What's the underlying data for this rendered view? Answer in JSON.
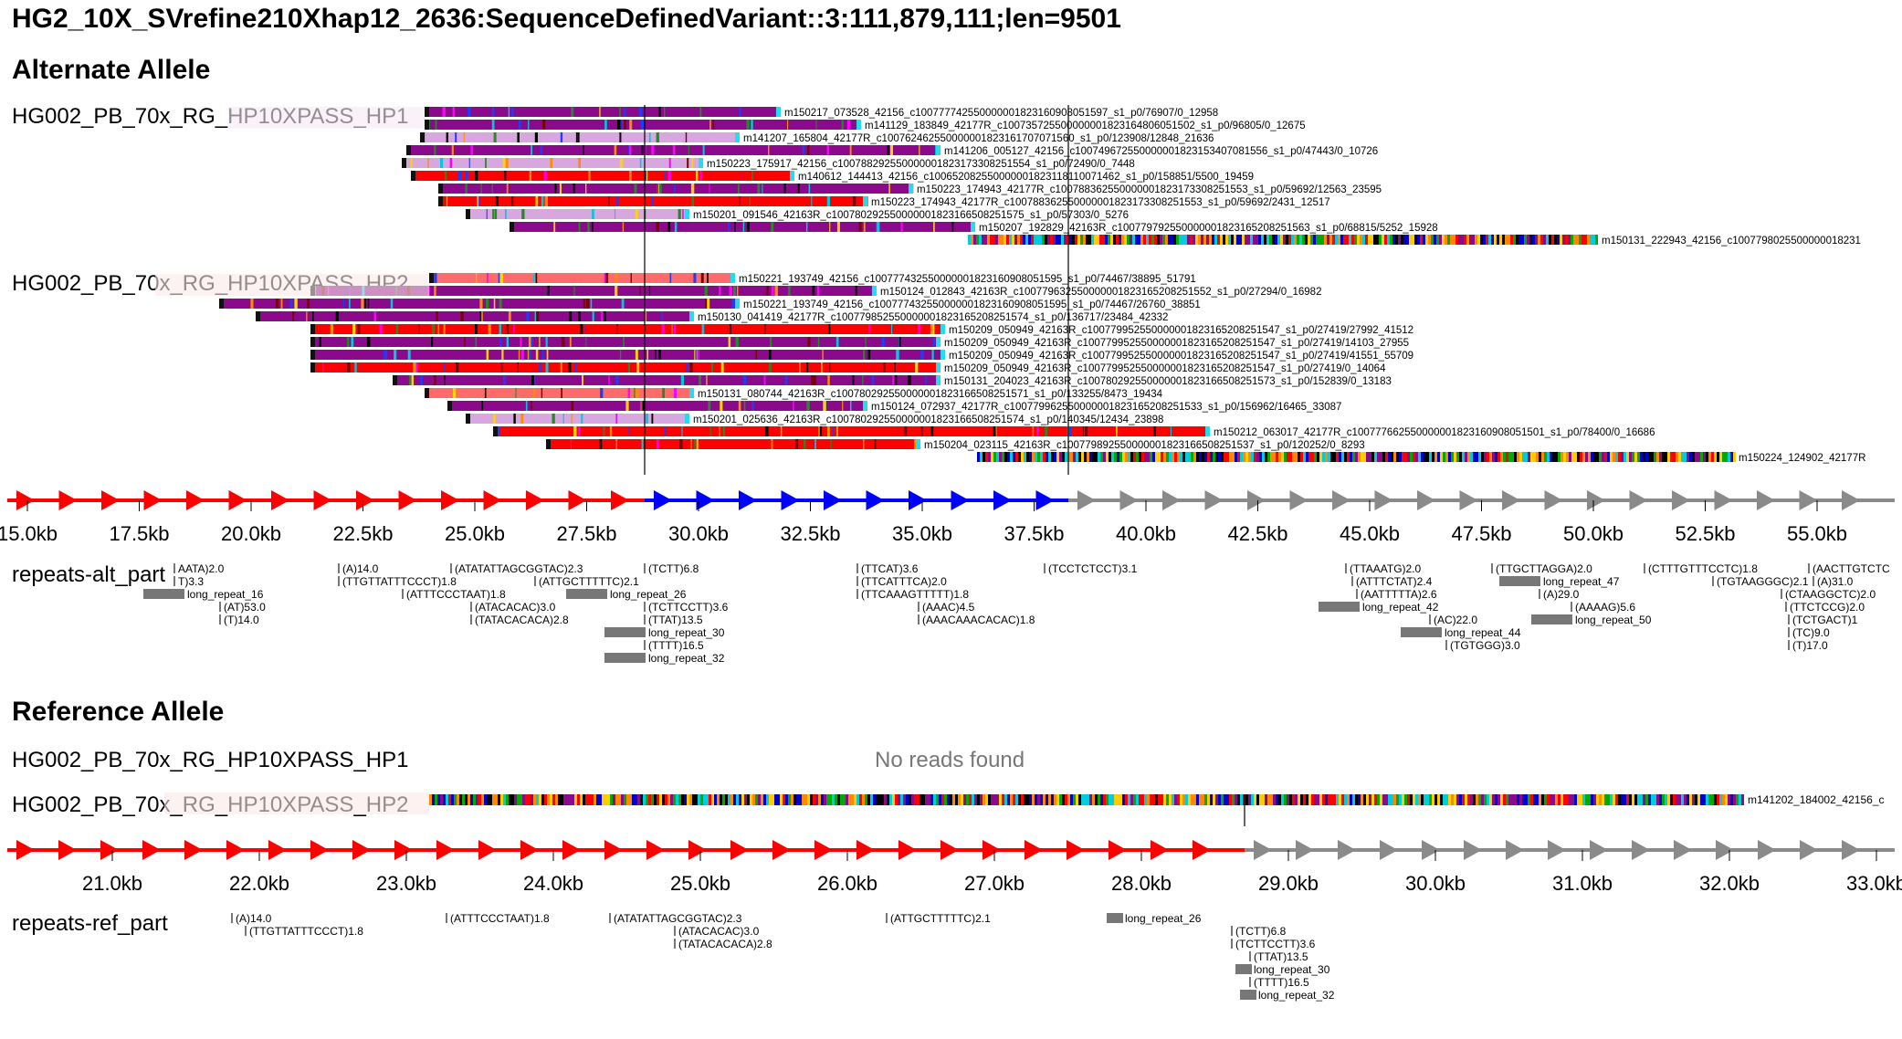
{
  "title": "HG2_10X_SVrefine210Xhap12_2636:SequenceDefinedVariant::3:111,879,111;len=9501",
  "colors": {
    "red": "#ff0000",
    "purple": "#8b0a8b",
    "lavender": "#d9a7e0",
    "blue": "#0000ff",
    "gray": "#8a8a8a",
    "cyan": "#22ddee",
    "pink": "#ff6b6b",
    "orange": "#f5a623"
  },
  "alt": {
    "header": "Alternate Allele",
    "hp1": {
      "label": "HG002_PB_70x_RG_HP10XPASS_HP1",
      "reads": [
        {
          "name": "m150217_073528_42156_c100777742550000001823160908051597_s1_p0/76907/0_12958",
          "color": "purple"
        },
        {
          "name": "m141129_183849_42177R_c100735725500000001823164806051502_s1_p0/96805/0_12675",
          "color": "purple"
        },
        {
          "name": "m141207_165804_42177R_c100762462550000001823161707071560_s1_p0/123908/12848_21636",
          "color": "lavender"
        },
        {
          "name": "m141206_005127_42156_c100749672550000001823153407081556_s1_p0/47443/0_10726",
          "color": "purple"
        },
        {
          "name": "m150223_175917_42156_c100788292550000001823173308251554_s1_p0/72490/0_7448",
          "color": "lavender"
        },
        {
          "name": "m140612_144413_42156_c100652082550000001823118110071462_s1_p0/158851/5500_19459",
          "color": "red"
        },
        {
          "name": "m150223_174943_42177R_c100788362550000001823173308251553_s1_p0/59692/12563_23595",
          "color": "purple"
        },
        {
          "name": "m150223_174943_42177R_c100788362550000001823173308251553_s1_p0/59692/2431_12517",
          "color": "red"
        },
        {
          "name": "m150201_091546_42163R_c100780292550000001823166508251575_s1_p0/57303/0_5276",
          "color": "lavender"
        },
        {
          "name": "m150207_192829_42163R_c100779792550000001823165208251563_s1_p0/68815/5252_15928",
          "color": "purple"
        },
        {
          "name": "m150131_222943_42156_c1007798025500000018231",
          "color": "multi"
        }
      ]
    },
    "hp2": {
      "label": "HG002_PB_70x_RG_HP10XPASS_HP2",
      "reads": [
        {
          "name": "m150221_193749_42156_c100777432550000001823160908051595_s1_p0/74467/38895_51791",
          "color": "pink"
        },
        {
          "name": "m150124_012843_42163R_c100779632550000001823165208251552_s1_p0/27294/0_16982",
          "color": "purple"
        },
        {
          "name": "m150221_193749_42156_c100777432550000001823160908051595_s1_p0/74467/26760_38851",
          "color": "purple"
        },
        {
          "name": "m150130_041419_42177R_c100779852550000001823165208251574_s1_p0/136717/23484_42332",
          "color": "purple"
        },
        {
          "name": "m150209_050949_42163R_c100779952550000001823165208251547_s1_p0/27419/27992_41512",
          "color": "red"
        },
        {
          "name": "m150209_050949_42163R_c100779952550000001823165208251547_s1_p0/27419/14103_27955",
          "color": "purple"
        },
        {
          "name": "m150209_050949_42163R_c100779952550000001823165208251547_s1_p0/27419/41551_55709",
          "color": "purple"
        },
        {
          "name": "m150209_050949_42163R_c100779952550000001823165208251547_s1_p0/27419/0_14064",
          "color": "red"
        },
        {
          "name": "m150131_204023_42163R_c100780292550000001823166508251573_s1_p0/152839/0_13183",
          "color": "purple"
        },
        {
          "name": "m150131_080744_42163R_c100780292550000001823166508251571_s1_p0/133255/8473_19434",
          "color": "pink"
        },
        {
          "name": "m150124_072937_42177R_c100779962550000001823165208251533_s1_p0/156962/16465_33087",
          "color": "purple"
        },
        {
          "name": "m150201_025636_42163R_c100780292550000001823166508251574_s1_p0/140345/12434_23898",
          "color": "lavender"
        },
        {
          "name": "m150212_063017_42177R_c100777662550000001823160908051501_s1_p0/78400/0_16686",
          "color": "red"
        },
        {
          "name": "m150204_023115_42163R_c100779892550000001823166508251537_s1_p0/120252/0_8293",
          "color": "red"
        },
        {
          "name": "m150224_124902_42177R",
          "color": "multi"
        }
      ]
    },
    "axis_ticks": [
      "15.0kb",
      "17.5kb",
      "20.0kb",
      "22.5kb",
      "25.0kb",
      "27.5kb",
      "30.0kb",
      "32.5kb",
      "35.0kb",
      "37.5kb",
      "40.0kb",
      "42.5kb",
      "45.0kb",
      "47.5kb",
      "50.0kb",
      "52.5kb",
      "55.0kb"
    ],
    "repeats_label": "repeats-alt_part",
    "repeats": [
      "AATA)2.0",
      "T)3.3",
      "long_repeat_16",
      "(AT)53.0",
      "(T)14.0",
      "(A)14.0",
      "(TTGTTATTTCCCT)1.8",
      "(ATATATTAGCGGTAC)2.3",
      "(ATTTCCCTAAT)1.8",
      "(ATTGCTTTTTC)2.1",
      "(ATACACAC)3.0",
      "(TATACACACA)2.8",
      "(TCTT)6.8",
      "long_repeat_26",
      "(TCTTCCTT)3.6",
      "(TTAT)13.5",
      "long_repeat_30",
      "(TTTT)16.5",
      "long_repeat_32",
      "(TTCAT)3.6",
      "(TTCATTTCA)2.0",
      "(TTCAAAGTTTTT)1.8",
      "(AAAC)4.5",
      "(AAACAAACACAC)1.8",
      "(TCCTCTCCT)3.1",
      "(TTAAATG)2.0",
      "(ATTTCTAT)2.4",
      "(AATTTTTA)2.6",
      "long_repeat_42",
      "(AC)22.0",
      "long_repeat_44",
      "(TGTGGG)3.0",
      "(TTGCTTAGGA)2.0",
      "long_repeat_47",
      "(A)29.0",
      "(AAAAG)5.6",
      "long_repeat_50",
      "(CTTTGTTTCCTC)1.8",
      "(TGTAAGGGC)2.1",
      "(A)31.0",
      "(AACTTGTCTC",
      "(CTAAGGCTC)2.0",
      "(TTCTCCG)2.0",
      "(TCTGACT)1",
      "(TC)9.0",
      "(T)17.0"
    ]
  },
  "ref": {
    "header": "Reference Allele",
    "hp1_label": "HG002_PB_70x_RG_HP10XPASS_HP1",
    "no_reads": "No reads found",
    "hp2_label": "HG002_PB_70x_RG_HP10XPASS_HP2",
    "read": "m141202_184002_42156_c",
    "axis_ticks": [
      "21.0kb",
      "22.0kb",
      "23.0kb",
      "24.0kb",
      "25.0kb",
      "26.0kb",
      "27.0kb",
      "28.0kb",
      "29.0kb",
      "30.0kb",
      "31.0kb",
      "32.0kb",
      "33.0kb"
    ],
    "repeats_label": "repeats-ref_part",
    "repeats": [
      "(A)14.0",
      "(TTGTTATTTCCCT)1.8",
      "(ATTTCCCTAAT)1.8",
      "(ATATATTAGCGGTAC)2.3",
      "(ATACACAC)3.0",
      "(TATACACACA)2.8",
      "(ATTGCTTTTTC)2.1",
      "long_repeat_26",
      "(TCTT)6.8",
      "(TCTTCCTT)3.6",
      "(TTAT)13.5",
      "long_repeat_30",
      "(TTTT)16.5",
      "long_repeat_32"
    ]
  }
}
